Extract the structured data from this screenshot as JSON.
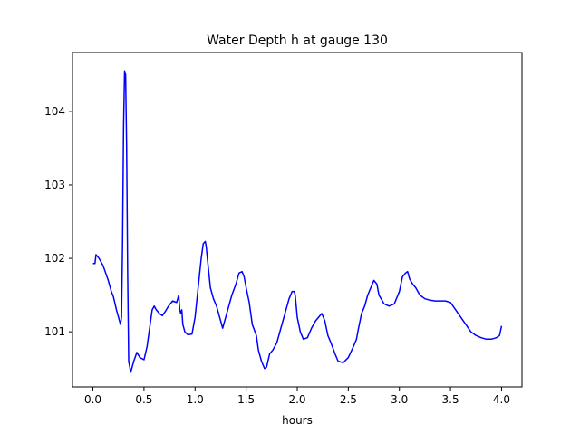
{
  "chart_data": {
    "type": "line",
    "title": "Water Depth h at gauge 130",
    "xlabel": "hours",
    "ylabel": "",
    "xlim": [
      -0.2,
      4.2
    ],
    "ylim": [
      100.25,
      104.8
    ],
    "xticks": [
      0.0,
      0.5,
      1.0,
      1.5,
      2.0,
      2.5,
      3.0,
      3.5,
      4.0
    ],
    "xtick_labels": [
      "0.0",
      "0.5",
      "1.0",
      "1.5",
      "2.0",
      "2.5",
      "3.0",
      "3.5",
      "4.0"
    ],
    "yticks": [
      101,
      102,
      103,
      104
    ],
    "ytick_labels": [
      "101",
      "102",
      "103",
      "104"
    ],
    "grid": false,
    "series": [
      {
        "color": "#0000ff",
        "x": [
          0.0,
          0.02,
          0.03,
          0.06,
          0.1,
          0.15,
          0.18,
          0.2,
          0.23,
          0.26,
          0.27,
          0.28,
          0.29,
          0.3,
          0.31,
          0.32,
          0.33,
          0.34,
          0.35,
          0.37,
          0.4,
          0.43,
          0.46,
          0.5,
          0.53,
          0.56,
          0.58,
          0.6,
          0.62,
          0.65,
          0.68,
          0.71,
          0.74,
          0.78,
          0.82,
          0.84,
          0.85,
          0.86,
          0.87,
          0.88,
          0.9,
          0.93,
          0.97,
          1.0,
          1.03,
          1.06,
          1.08,
          1.1,
          1.11,
          1.12,
          1.15,
          1.18,
          1.21,
          1.24,
          1.27,
          1.3,
          1.33,
          1.36,
          1.4,
          1.43,
          1.46,
          1.48,
          1.5,
          1.53,
          1.56,
          1.6,
          1.62,
          1.65,
          1.68,
          1.7,
          1.73,
          1.76,
          1.8,
          1.84,
          1.88,
          1.92,
          1.95,
          1.97,
          1.98,
          2.0,
          2.03,
          2.06,
          2.1,
          2.14,
          2.18,
          2.21,
          2.24,
          2.27,
          2.3,
          2.33,
          2.37,
          2.4,
          2.45,
          2.5,
          2.55,
          2.58,
          2.6,
          2.63,
          2.66,
          2.69,
          2.72,
          2.75,
          2.78,
          2.8,
          2.85,
          2.9,
          2.95,
          3.0,
          3.03,
          3.06,
          3.08,
          3.1,
          3.13,
          3.16,
          3.2,
          3.25,
          3.3,
          3.35,
          3.4,
          3.45,
          3.5,
          3.55,
          3.6,
          3.65,
          3.7,
          3.75,
          3.8,
          3.85,
          3.9,
          3.95,
          3.98,
          4.0
        ],
        "y": [
          101.93,
          101.93,
          102.05,
          102.0,
          101.9,
          101.7,
          101.55,
          101.48,
          101.3,
          101.15,
          101.1,
          101.2,
          102.2,
          103.8,
          104.55,
          104.5,
          103.5,
          101.8,
          100.6,
          100.45,
          100.6,
          100.72,
          100.65,
          100.62,
          100.8,
          101.1,
          101.3,
          101.35,
          101.3,
          101.25,
          101.22,
          101.28,
          101.35,
          101.42,
          101.4,
          101.5,
          101.3,
          101.25,
          101.3,
          101.1,
          101.0,
          100.96,
          100.97,
          101.2,
          101.6,
          102.0,
          102.2,
          102.23,
          102.15,
          102.0,
          101.6,
          101.45,
          101.35,
          101.2,
          101.05,
          101.2,
          101.35,
          101.5,
          101.65,
          101.8,
          101.82,
          101.75,
          101.6,
          101.4,
          101.1,
          100.95,
          100.75,
          100.6,
          100.5,
          100.52,
          100.7,
          100.75,
          100.85,
          101.05,
          101.25,
          101.45,
          101.55,
          101.55,
          101.5,
          101.2,
          101.0,
          100.9,
          100.92,
          101.05,
          101.15,
          101.2,
          101.25,
          101.15,
          100.95,
          100.85,
          100.7,
          100.6,
          100.58,
          100.65,
          100.8,
          100.9,
          101.05,
          101.25,
          101.35,
          101.5,
          101.6,
          101.7,
          101.65,
          101.5,
          101.38,
          101.35,
          101.38,
          101.55,
          101.75,
          101.8,
          101.82,
          101.72,
          101.65,
          101.6,
          101.5,
          101.45,
          101.43,
          101.42,
          101.42,
          101.42,
          101.4,
          101.3,
          101.2,
          101.1,
          101.0,
          100.95,
          100.92,
          100.9,
          100.9,
          100.92,
          100.95,
          101.08
        ]
      }
    ]
  }
}
